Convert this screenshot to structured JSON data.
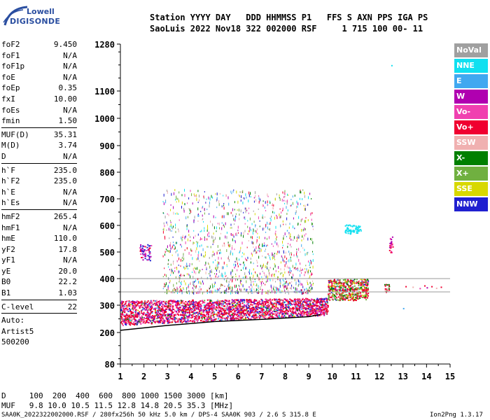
{
  "logo": {
    "top": "Lowell",
    "bottom": "DIGISONDE"
  },
  "header": {
    "line1": "Station YYYY DAY   DDD HHMMSS P1   FFS S AXN PPS IGA PS",
    "line2": "SaoLuis 2022 Nov18 322 002000 RSF     1 715 100 00- 11"
  },
  "params": [
    {
      "group": [
        {
          "k": "foF2",
          "v": "9.450"
        },
        {
          "k": "foF1",
          "v": "N/A"
        },
        {
          "k": "foF1p",
          "v": "N/A"
        },
        {
          "k": "foE",
          "v": "N/A"
        },
        {
          "k": "foEp",
          "v": "0.35"
        },
        {
          "k": "fxI",
          "v": "10.00"
        },
        {
          "k": "foEs",
          "v": "N/A"
        },
        {
          "k": "fmin",
          "v": "1.50"
        }
      ]
    },
    {
      "group": [
        {
          "k": "MUF(D)",
          "v": "35.31"
        },
        {
          "k": "M(D)",
          "v": "3.74"
        },
        {
          "k": "D",
          "v": "N/A"
        }
      ]
    },
    {
      "group": [
        {
          "k": "h`F",
          "v": "235.0"
        },
        {
          "k": "h`F2",
          "v": "235.0"
        },
        {
          "k": "h`E",
          "v": "N/A"
        },
        {
          "k": "h`Es",
          "v": "N/A"
        }
      ]
    },
    {
      "group": [
        {
          "k": "hmF2",
          "v": "265.4"
        },
        {
          "k": "hmF1",
          "v": "N/A"
        },
        {
          "k": "hmE",
          "v": "110.0"
        },
        {
          "k": "yF2",
          "v": "17.8"
        },
        {
          "k": "yF1",
          "v": "N/A"
        },
        {
          "k": "yE",
          "v": "20.0"
        },
        {
          "k": "B0",
          "v": "22.2"
        },
        {
          "k": "B1",
          "v": "1.03"
        }
      ]
    },
    {
      "group": [
        {
          "k": "C-level",
          "v": "22"
        }
      ]
    }
  ],
  "autoscale": [
    "Auto:",
    "Artist5",
    "500200"
  ],
  "legend": [
    {
      "label": "NoVal",
      "color": "#a0a0a0"
    },
    {
      "label": "NNE",
      "color": "#10e0f0"
    },
    {
      "label": "E",
      "color": "#40a8f0"
    },
    {
      "label": "W",
      "color": "#b000b0"
    },
    {
      "label": "Vo-",
      "color": "#f040b0"
    },
    {
      "label": "Vo+",
      "color": "#f00030"
    },
    {
      "label": "SSW",
      "color": "#f0b0b0"
    },
    {
      "label": "X-",
      "color": "#008000"
    },
    {
      "label": "X+",
      "color": "#70b040"
    },
    {
      "label": "SSE",
      "color": "#d8d800"
    },
    {
      "label": "NNW",
      "color": "#2020d0"
    }
  ],
  "bottom": {
    "line1": "D     100  200  400  600  800 1000 1500 3000 [km]",
    "line2": "MUF   9.8 10.0 10.5 11.5 12.8 14.8 20.5 35.3 [MHz]"
  },
  "footer": {
    "left": "SAA0K_2022322002000.RSF / 280fx256h 50 kHz 5.0 km / DPS-4 SAA0K 903 / 2.6 S 315.8 E",
    "right": "Ion2Png 1.3.17"
  },
  "chart_data": {
    "type": "scatter",
    "title": "",
    "xlabel": "",
    "ylabel": "",
    "xlim": [
      1,
      15
    ],
    "ylim": [
      80,
      1280
    ],
    "xticks": [
      1,
      2,
      3,
      4,
      5,
      6,
      7,
      8,
      9,
      10,
      11,
      12,
      13,
      14,
      15
    ],
    "yticks": [
      80,
      200,
      300,
      400,
      500,
      600,
      700,
      800,
      900,
      1000,
      1100,
      1280
    ],
    "grid": false,
    "scale_note": "nonlinear height axis (80-1280 km)",
    "reference_lines_km": [
      350,
      400
    ],
    "trace": {
      "x": [
        1.0,
        3.0,
        5.0,
        7.0,
        9.0,
        9.5
      ],
      "y": [
        208,
        226,
        240,
        248,
        258,
        266
      ]
    },
    "echo_clusters": [
      {
        "name": "F-layer dense",
        "x_range": [
          1.0,
          9.8
        ],
        "h_range": [
          225,
          335
        ],
        "dominant": "Vo+"
      },
      {
        "name": "F2 cusp",
        "x_range": [
          9.8,
          11.5
        ],
        "h_range": [
          320,
          400
        ],
        "dominant": "Vo+"
      },
      {
        "name": "spread F",
        "x_range": [
          2.8,
          9.2
        ],
        "h_range": [
          350,
          740
        ],
        "dominant": "mixed"
      },
      {
        "name": "NNE patch",
        "x_range": [
          10.5,
          11.2
        ],
        "h_range": [
          570,
          610
        ],
        "dominant": "NNE"
      },
      {
        "name": "x2 echoes",
        "x_range": [
          12.3,
          14.6
        ],
        "h_range": [
          360,
          380
        ],
        "dominant": "Vo+"
      }
    ]
  }
}
